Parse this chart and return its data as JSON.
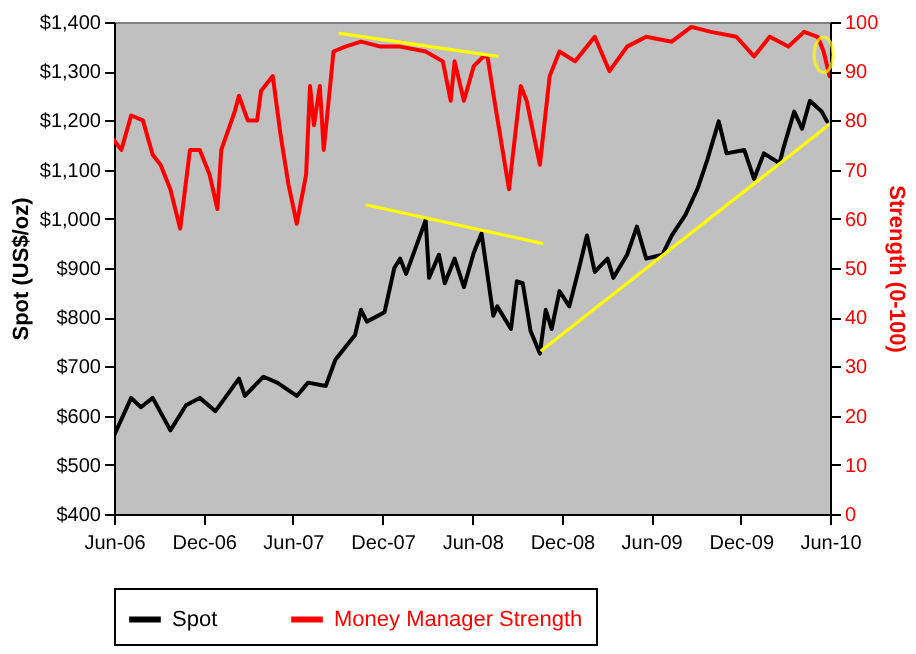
{
  "chart_data": {
    "type": "line",
    "ylabel": "Spot (US$/oz)",
    "y2label": "Strength (0-100)",
    "xlim": [
      "2006-06-01",
      "2010-06-01"
    ],
    "xticks": [
      {
        "value": "2006-06",
        "label": "Jun-06"
      },
      {
        "value": "2006-12",
        "label": "Dec-06"
      },
      {
        "value": "2007-06",
        "label": "Jun-07"
      },
      {
        "value": "2007-12",
        "label": "Dec-07"
      },
      {
        "value": "2008-06",
        "label": "Jun-08"
      },
      {
        "value": "2008-12",
        "label": "Dec-08"
      },
      {
        "value": "2009-06",
        "label": "Jun-09"
      },
      {
        "value": "2009-12",
        "label": "Dec-09"
      },
      {
        "value": "2010-06",
        "label": "Jun-10"
      }
    ],
    "ylim": [
      400,
      1400
    ],
    "yticks": [
      {
        "value": 400,
        "label": "$400"
      },
      {
        "value": 500,
        "label": "$500"
      },
      {
        "value": 600,
        "label": "$600"
      },
      {
        "value": 700,
        "label": "$700"
      },
      {
        "value": 800,
        "label": "$800"
      },
      {
        "value": 900,
        "label": "$900"
      },
      {
        "value": 1000,
        "label": "$1,000"
      },
      {
        "value": 1100,
        "label": "$1,100"
      },
      {
        "value": 1200,
        "label": "$1,200"
      },
      {
        "value": 1300,
        "label": "$1,300"
      },
      {
        "value": 1400,
        "label": "$1,400"
      }
    ],
    "y2lim": [
      0,
      100
    ],
    "y2ticks": [
      0,
      10,
      20,
      30,
      40,
      50,
      60,
      70,
      80,
      90,
      100
    ],
    "legend": "bottom",
    "grid": false,
    "series": [
      {
        "name": "Spot",
        "color": "#000000",
        "x": [
          "2006-06-01",
          "2006-07-06",
          "2006-07-26",
          "2006-08-19",
          "2006-09-24",
          "2006-10-26",
          "2006-11-23",
          "2006-12-25",
          "2007-02-11",
          "2007-02-23",
          "2007-04-02",
          "2007-04-30",
          "2007-06-09",
          "2007-07-02",
          "2007-08-07",
          "2007-08-27",
          "2007-10-06",
          "2007-10-18",
          "2007-10-30",
          "2007-12-05",
          "2007-12-25",
          "2008-01-06",
          "2008-01-18",
          "2008-02-27",
          "2008-03-05",
          "2008-03-25",
          "2008-04-06",
          "2008-04-26",
          "2008-05-15",
          "2008-06-04",
          "2008-06-20",
          "2008-07-14",
          "2008-07-22",
          "2008-08-19",
          "2008-08-31",
          "2008-09-12",
          "2008-09-28",
          "2008-10-17",
          "2008-10-29",
          "2008-11-10",
          "2008-11-26",
          "2008-12-16",
          "2009-01-05",
          "2009-01-21",
          "2009-02-06",
          "2009-03-04",
          "2009-03-16",
          "2009-04-13",
          "2009-05-03",
          "2009-05-22",
          "2009-06-24",
          "2009-07-13",
          "2009-08-10",
          "2009-09-04",
          "2009-09-24",
          "2009-10-17",
          "2009-11-02",
          "2009-12-08",
          "2009-12-28",
          "2010-01-17",
          "2010-02-18",
          "2010-02-26",
          "2010-03-20",
          "2010-04-05",
          "2010-04-21",
          "2010-05-15",
          "2010-05-26"
        ],
        "values": [
          559,
          636,
          617,
          636,
          570,
          621,
          636,
          609,
          675,
          640,
          679,
          667,
          640,
          667,
          660,
          714,
          764,
          815,
          791,
          810,
          900,
          919,
          888,
          997,
          880,
          927,
          869,
          919,
          861,
          931,
          970,
          803,
          822,
          776,
          873,
          869,
          772,
          726,
          815,
          776,
          853,
          822,
          900,
          966,
          892,
          919,
          880,
          927,
          984,
          919,
          927,
          966,
          1008,
          1062,
          1121,
          1198,
          1133,
          1140,
          1081,
          1133,
          1113,
          1144,
          1218,
          1183,
          1240,
          1218,
          1198
        ]
      },
      {
        "name": "Money Manager Strength",
        "color": "#ff0000",
        "axis": "y2",
        "x": [
          "2006-06-01",
          "2006-06-16",
          "2006-07-06",
          "2006-07-30",
          "2006-08-19",
          "2006-09-04",
          "2006-09-24",
          "2006-10-14",
          "2006-11-03",
          "2006-11-23",
          "2006-12-13",
          "2006-12-29",
          "2007-01-06",
          "2007-02-03",
          "2007-02-11",
          "2007-03-01",
          "2007-03-20",
          "2007-03-28",
          "2007-04-21",
          "2007-05-07",
          "2007-05-23",
          "2007-06-09",
          "2007-06-28",
          "2007-07-06",
          "2007-07-14",
          "2007-07-26",
          "2007-08-03",
          "2007-08-23",
          "2007-09-16",
          "2007-10-18",
          "2007-11-27",
          "2008-01-06",
          "2008-02-27",
          "2008-04-02",
          "2008-04-18",
          "2008-04-26",
          "2008-05-15",
          "2008-06-04",
          "2008-06-24",
          "2008-07-02",
          "2008-07-18",
          "2008-08-15",
          "2008-09-08",
          "2008-09-20",
          "2008-10-17",
          "2008-11-06",
          "2008-11-26",
          "2008-12-28",
          "2009-02-06",
          "2009-03-08",
          "2009-04-13",
          "2009-05-22",
          "2009-07-13",
          "2009-08-22",
          "2009-10-01",
          "2009-11-22",
          "2009-12-28",
          "2010-01-29",
          "2010-03-08",
          "2010-04-09",
          "2010-05-07",
          "2010-05-19",
          "2010-05-31"
        ],
        "values": [
          76,
          74,
          81,
          80,
          73,
          71,
          66,
          58,
          74,
          74,
          69,
          62,
          74,
          82,
          85,
          80,
          80,
          86,
          89,
          77,
          67,
          59,
          69,
          87,
          79,
          87,
          74,
          94,
          95,
          96,
          95,
          95,
          94,
          92,
          84,
          92,
          84,
          91,
          93,
          93,
          83,
          66,
          87,
          84,
          71,
          89,
          94,
          92,
          97,
          90,
          95,
          97,
          96,
          99,
          98,
          97,
          93,
          97,
          95,
          98,
          97,
          94,
          89
        ]
      },
      {
        "type": "line",
        "color": "#ffff00",
        "x": [
          "2007-09-05",
          "2008-07-22"
        ],
        "values": [
          97.7,
          93.0
        ],
        "axis": "y2"
      },
      {
        "type": "line",
        "color": "#ffff00",
        "x": [
          "2007-10-30",
          "2008-10-21"
        ],
        "values": [
          1028,
          950
        ]
      },
      {
        "type": "line",
        "color": "#ffff00",
        "x": [
          "2008-10-21",
          "2010-05-30"
        ],
        "values": [
          733,
          1191
        ]
      }
    ]
  }
}
